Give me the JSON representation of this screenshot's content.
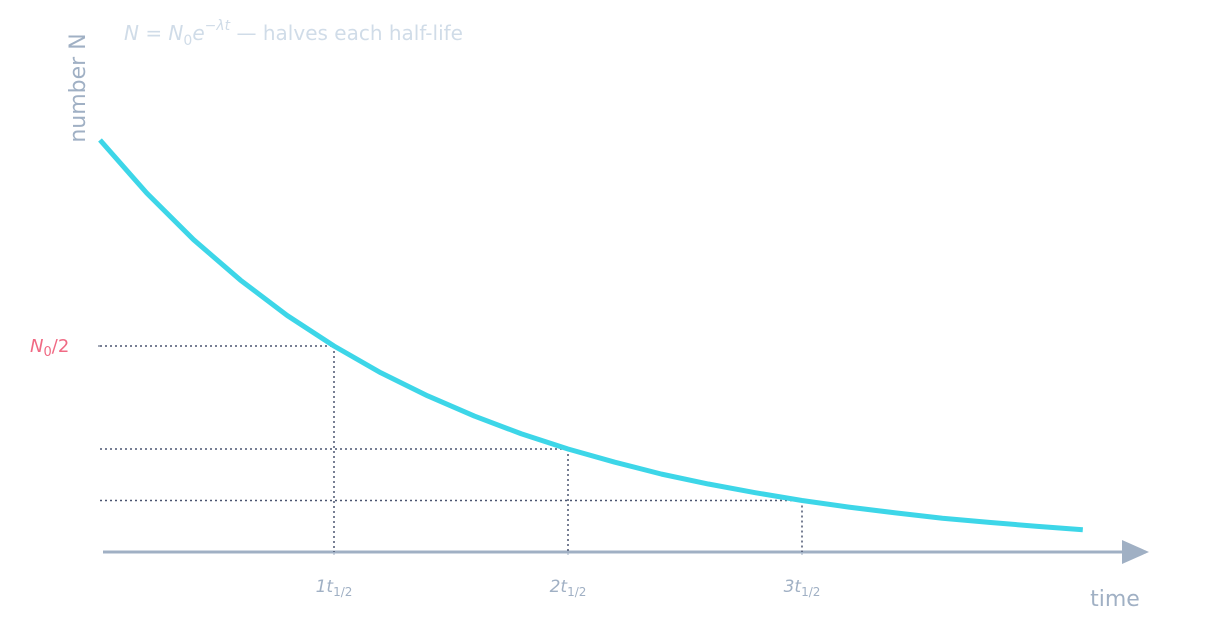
{
  "chart_data": {
    "type": "line",
    "title": [
      "N = N",
      "0",
      "e",
      "−λt",
      " — halves each half-life"
    ],
    "x_label": "time",
    "y_label": "number N",
    "x": [
      0,
      0.2,
      0.4,
      0.6,
      0.8,
      1.0,
      1.2,
      1.4,
      1.6,
      1.8,
      2.0,
      2.2,
      2.4,
      2.6,
      2.8,
      3.0,
      3.2,
      3.4,
      3.6,
      3.8,
      4.0,
      4.2
    ],
    "values": [
      1,
      0.871,
      0.758,
      0.66,
      0.574,
      0.5,
      0.435,
      0.379,
      0.33,
      0.287,
      0.25,
      0.218,
      0.189,
      0.165,
      0.144,
      0.125,
      0.109,
      0.095,
      0.082,
      0.072,
      0.0625,
      0.054
    ],
    "color": "#3dd6e8",
    "xlim": [
      0,
      4.46
    ],
    "ylim": [
      0,
      1
    ],
    "xticks": [
      {
        "value": 1,
        "label": [
          "1t",
          "1/2"
        ]
      },
      {
        "value": 2,
        "label": [
          "2t",
          "1/2"
        ]
      },
      {
        "value": 3,
        "label": [
          "3t",
          "1/2"
        ]
      }
    ],
    "yticks": [
      {
        "value": 0.5,
        "label": [
          "N",
          "0",
          "/2"
        ]
      }
    ],
    "drop_lines": {
      "x": [
        1,
        2,
        3
      ],
      "y": [
        0.5,
        0.25,
        0.125
      ]
    }
  }
}
